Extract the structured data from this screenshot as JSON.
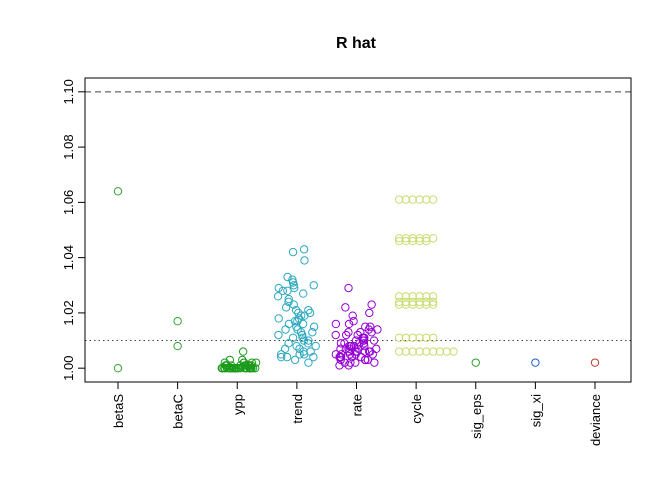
{
  "chart_data": {
    "type": "scatter",
    "title": "R hat",
    "xlabel": "",
    "ylabel": "",
    "ylim": [
      0.995,
      1.105
    ],
    "yticks": [
      "1.00",
      "1.02",
      "1.04",
      "1.06",
      "1.08",
      "1.10"
    ],
    "categories": [
      "betaS",
      "betaC",
      "ypp",
      "trend",
      "rate",
      "cycle",
      "sig_eps",
      "sig_xi",
      "deviance"
    ],
    "reference_lines": [
      {
        "y": 1.1,
        "style": "dashed"
      },
      {
        "y": 1.01,
        "style": "dotted"
      }
    ],
    "series": [
      {
        "category": "betaS",
        "color": "#2ca02c",
        "values": [
          1.064,
          1.0
        ]
      },
      {
        "category": "betaC",
        "color": "#2ca02c",
        "values": [
          1.017,
          1.008
        ]
      },
      {
        "category": "ypp",
        "color": "#1a9a1a",
        "values": [
          1.006,
          1.003,
          1.003,
          1.002,
          1.002,
          1.002,
          1.002,
          1.002,
          1.001,
          1.001,
          1.001,
          1.001,
          1.001,
          1.001,
          1.001,
          1.001,
          1.001,
          1.001,
          1.001,
          1.0,
          1.0,
          1.0,
          1.0,
          1.0,
          1.0,
          1.0,
          1.0,
          1.0,
          1.0,
          1.0,
          1.0,
          1.0,
          1.0,
          1.0,
          1.0,
          1.0,
          1.0,
          1.0,
          1.0,
          1.0,
          1.0,
          1.0,
          1.0,
          1.0,
          1.0,
          1.0,
          1.0,
          1.0,
          1.0,
          1.0
        ]
      },
      {
        "category": "trend",
        "color": "#2ba8bf",
        "values": [
          1.043,
          1.042,
          1.039,
          1.033,
          1.032,
          1.031,
          1.03,
          1.03,
          1.029,
          1.029,
          1.028,
          1.028,
          1.027,
          1.026,
          1.025,
          1.024,
          1.023,
          1.022,
          1.021,
          1.021,
          1.02,
          1.02,
          1.019,
          1.019,
          1.018,
          1.018,
          1.017,
          1.017,
          1.016,
          1.016,
          1.015,
          1.015,
          1.014,
          1.014,
          1.013,
          1.013,
          1.012,
          1.012,
          1.011,
          1.011,
          1.01,
          1.01,
          1.009,
          1.009,
          1.008,
          1.008,
          1.007,
          1.007,
          1.006,
          1.006,
          1.005,
          1.005,
          1.005,
          1.004,
          1.004,
          1.004,
          1.003,
          1.002
        ]
      },
      {
        "category": "rate",
        "color": "#9400d3",
        "values": [
          1.029,
          1.023,
          1.022,
          1.02,
          1.019,
          1.017,
          1.016,
          1.016,
          1.015,
          1.015,
          1.014,
          1.014,
          1.013,
          1.013,
          1.013,
          1.012,
          1.012,
          1.012,
          1.011,
          1.011,
          1.011,
          1.01,
          1.01,
          1.01,
          1.01,
          1.009,
          1.009,
          1.009,
          1.009,
          1.008,
          1.008,
          1.008,
          1.008,
          1.008,
          1.007,
          1.007,
          1.007,
          1.007,
          1.007,
          1.006,
          1.006,
          1.006,
          1.006,
          1.006,
          1.006,
          1.005,
          1.005,
          1.005,
          1.005,
          1.005,
          1.004,
          1.004,
          1.004,
          1.004,
          1.004,
          1.003,
          1.003,
          1.003,
          1.003,
          1.002,
          1.002,
          1.002,
          1.002,
          1.001,
          1.001
        ]
      },
      {
        "category": "cycle",
        "color": "#c8dc6e",
        "values": [
          1.061,
          1.061,
          1.061,
          1.061,
          1.061,
          1.061,
          1.047,
          1.047,
          1.047,
          1.047,
          1.047,
          1.047,
          1.046,
          1.046,
          1.046,
          1.046,
          1.046,
          1.026,
          1.026,
          1.026,
          1.026,
          1.026,
          1.026,
          1.024,
          1.024,
          1.024,
          1.024,
          1.024,
          1.024,
          1.023,
          1.023,
          1.023,
          1.023,
          1.023,
          1.023,
          1.011,
          1.011,
          1.011,
          1.011,
          1.011,
          1.011,
          1.006,
          1.006,
          1.006,
          1.006,
          1.006,
          1.006,
          1.006,
          1.006,
          1.006
        ]
      },
      {
        "category": "sig_eps",
        "color": "#2ca02c",
        "values": [
          1.002
        ]
      },
      {
        "category": "sig_xi",
        "color": "#1f5fd6",
        "values": [
          1.002
        ]
      },
      {
        "category": "deviance",
        "color": "#c0392b",
        "values": [
          1.002
        ]
      }
    ]
  }
}
